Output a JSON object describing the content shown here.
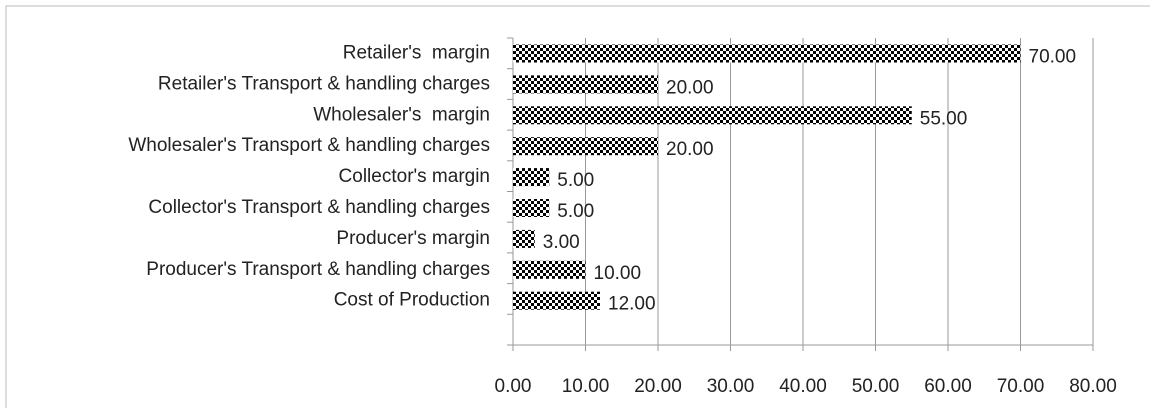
{
  "chart_data": {
    "type": "bar",
    "orientation": "horizontal",
    "categories": [
      "Retailer's  margin",
      "Retailer's Transport & handling charges",
      "Wholesaler's  margin",
      "Wholesaler's Transport & handling charges",
      "Collector's margin",
      "Collector's Transport & handling charges",
      "Producer's margin",
      "Producer's Transport & handling charges",
      "Cost of Production"
    ],
    "values": [
      70,
      20,
      55,
      20,
      5,
      5,
      3,
      10,
      12
    ],
    "value_labels": [
      "70.00",
      "20.00",
      "55.00",
      "20.00",
      "5.00",
      "5.00",
      "3.00",
      "10.00",
      "12.00"
    ],
    "color": "#000000",
    "xlim": [
      0,
      80
    ],
    "xticks": [
      {
        "value": 0,
        "label": "0.00"
      },
      {
        "value": 10,
        "label": "10.00"
      },
      {
        "value": 20,
        "label": "20.00"
      },
      {
        "value": 30,
        "label": "30.00"
      },
      {
        "value": 40,
        "label": "40.00"
      },
      {
        "value": 50,
        "label": "50.00"
      },
      {
        "value": 60,
        "label": "60.00"
      },
      {
        "value": 70,
        "label": "70.00"
      },
      {
        "value": 80,
        "label": "80.00"
      }
    ],
    "grid": true
  }
}
